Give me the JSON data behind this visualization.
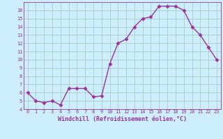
{
  "x": [
    0,
    1,
    2,
    3,
    4,
    5,
    6,
    7,
    8,
    9,
    10,
    11,
    12,
    13,
    14,
    15,
    16,
    17,
    18,
    19,
    20,
    21,
    22,
    23
  ],
  "y": [
    6.0,
    5.0,
    4.8,
    5.0,
    4.5,
    6.5,
    6.5,
    6.5,
    5.5,
    5.6,
    9.5,
    12.0,
    12.5,
    14.0,
    15.0,
    15.2,
    16.5,
    16.5,
    16.5,
    16.0,
    14.0,
    13.0,
    11.5,
    10.0
  ],
  "line_color": "#993399",
  "marker": "D",
  "marker_size": 2.5,
  "bg_color": "#cceeff",
  "grid_color": "#aaccbb",
  "xlabel": "Windchill (Refroidissement éolien,°C)",
  "xlabel_color": "#993399",
  "tick_color": "#993399",
  "ylim": [
    4,
    17
  ],
  "yticks": [
    4,
    5,
    6,
    7,
    8,
    9,
    10,
    11,
    12,
    13,
    14,
    15,
    16
  ],
  "xticks": [
    0,
    1,
    2,
    3,
    4,
    5,
    6,
    7,
    8,
    9,
    10,
    11,
    12,
    13,
    14,
    15,
    16,
    17,
    18,
    19,
    20,
    21,
    22,
    23
  ],
  "line_width": 1.0,
  "tick_fontsize": 5.0,
  "xlabel_fontsize": 6.0
}
